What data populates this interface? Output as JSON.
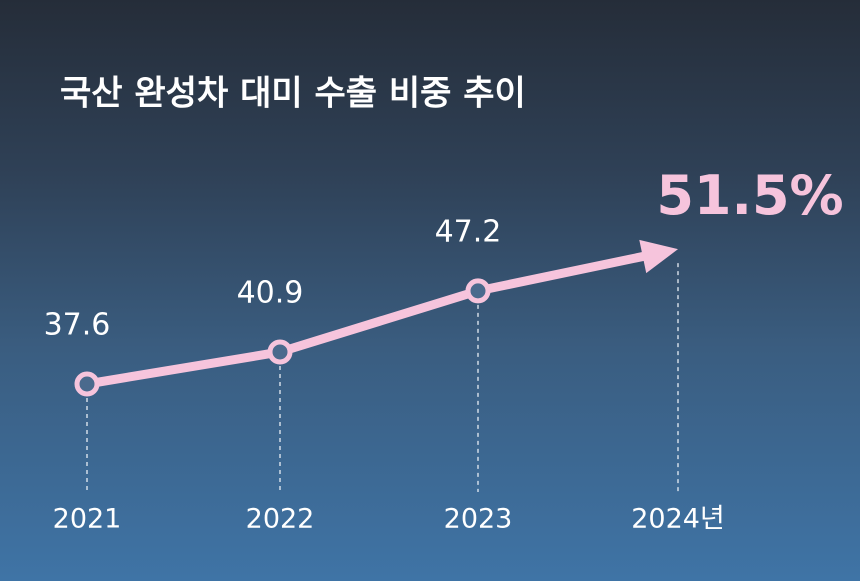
{
  "chart_data": {
    "type": "line",
    "title": "국산 완성차 대미 수출 비중 추이",
    "categories": [
      "2021",
      "2022",
      "2023",
      "2024년"
    ],
    "series": [
      {
        "name": null,
        "color": "#f6c4dc",
        "values": [
          37.6,
          40.9,
          47.2,
          51.5
        ],
        "value_labels": [
          "37.6",
          "40.9",
          "47.2",
          "51.5%"
        ]
      }
    ]
  }
}
